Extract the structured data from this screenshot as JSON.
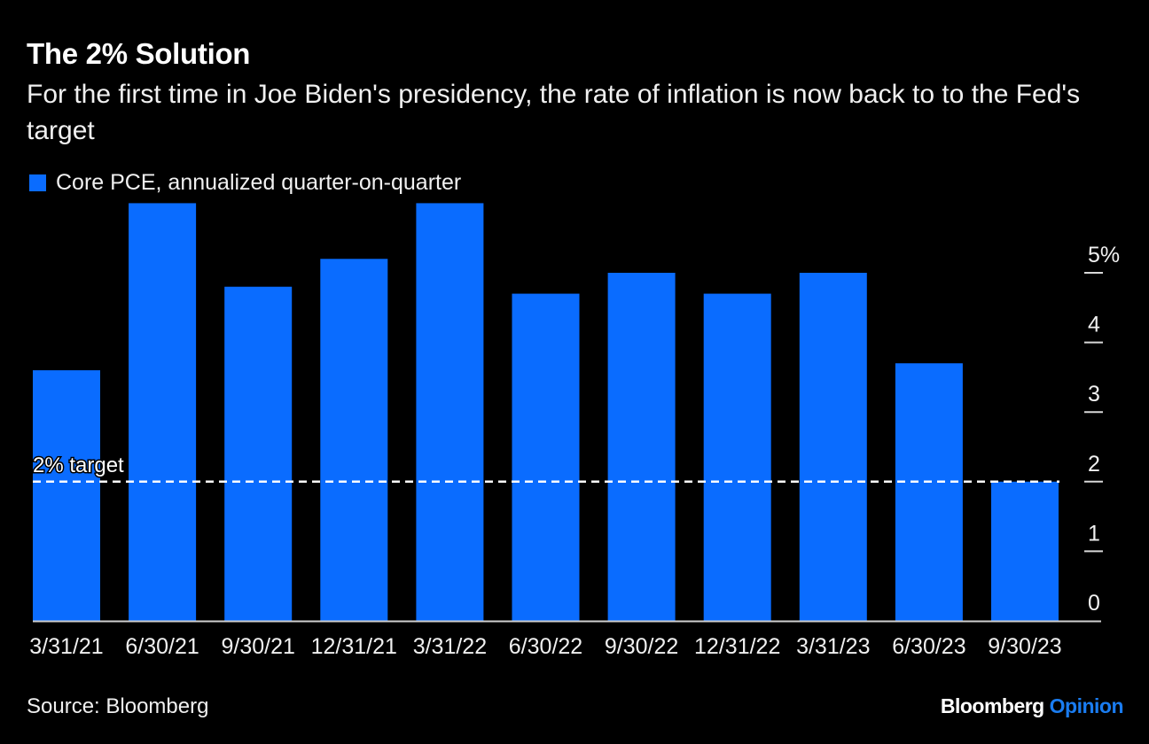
{
  "header": {
    "title": "The 2% Solution",
    "subtitle": "For the first time in Joe Biden's presidency, the rate of inflation is now back to to the Fed's target"
  },
  "legend": {
    "label": "Core PCE, annualized quarter-on-quarter",
    "color": "#0a6cff"
  },
  "footer": {
    "source": "Source: Bloomberg",
    "brand_main": "Bloomberg",
    "brand_accent": "Opinion"
  },
  "chart_data": {
    "type": "bar",
    "title": "The 2% Solution",
    "subtitle": "For the first time in Joe Biden's presidency, the rate of inflation is now back to to the Fed's target",
    "categories": [
      "3/31/21",
      "6/30/21",
      "9/30/21",
      "12/31/21",
      "3/31/22",
      "6/30/22",
      "9/30/22",
      "12/31/22",
      "3/31/23",
      "6/30/23",
      "9/30/23"
    ],
    "series": [
      {
        "name": "Core PCE, annualized quarter-on-quarter",
        "color": "#0a6cff",
        "values": [
          3.6,
          6.0,
          4.8,
          5.2,
          6.0,
          4.7,
          5.0,
          4.7,
          5.0,
          3.7,
          2.0
        ]
      }
    ],
    "ylim": [
      0,
      6
    ],
    "yticks": [
      0,
      1,
      2,
      3,
      4,
      5
    ],
    "ytick_labels": [
      "0",
      "1",
      "2",
      "3",
      "4",
      "5%"
    ],
    "y_axis_side": "right",
    "reference_line": {
      "value": 2,
      "label": "2% target",
      "style": "dashed",
      "color": "#ffffff"
    },
    "xlabel": "",
    "ylabel": "",
    "grid": false,
    "legend_position": "top-left",
    "source": "Source: Bloomberg"
  }
}
